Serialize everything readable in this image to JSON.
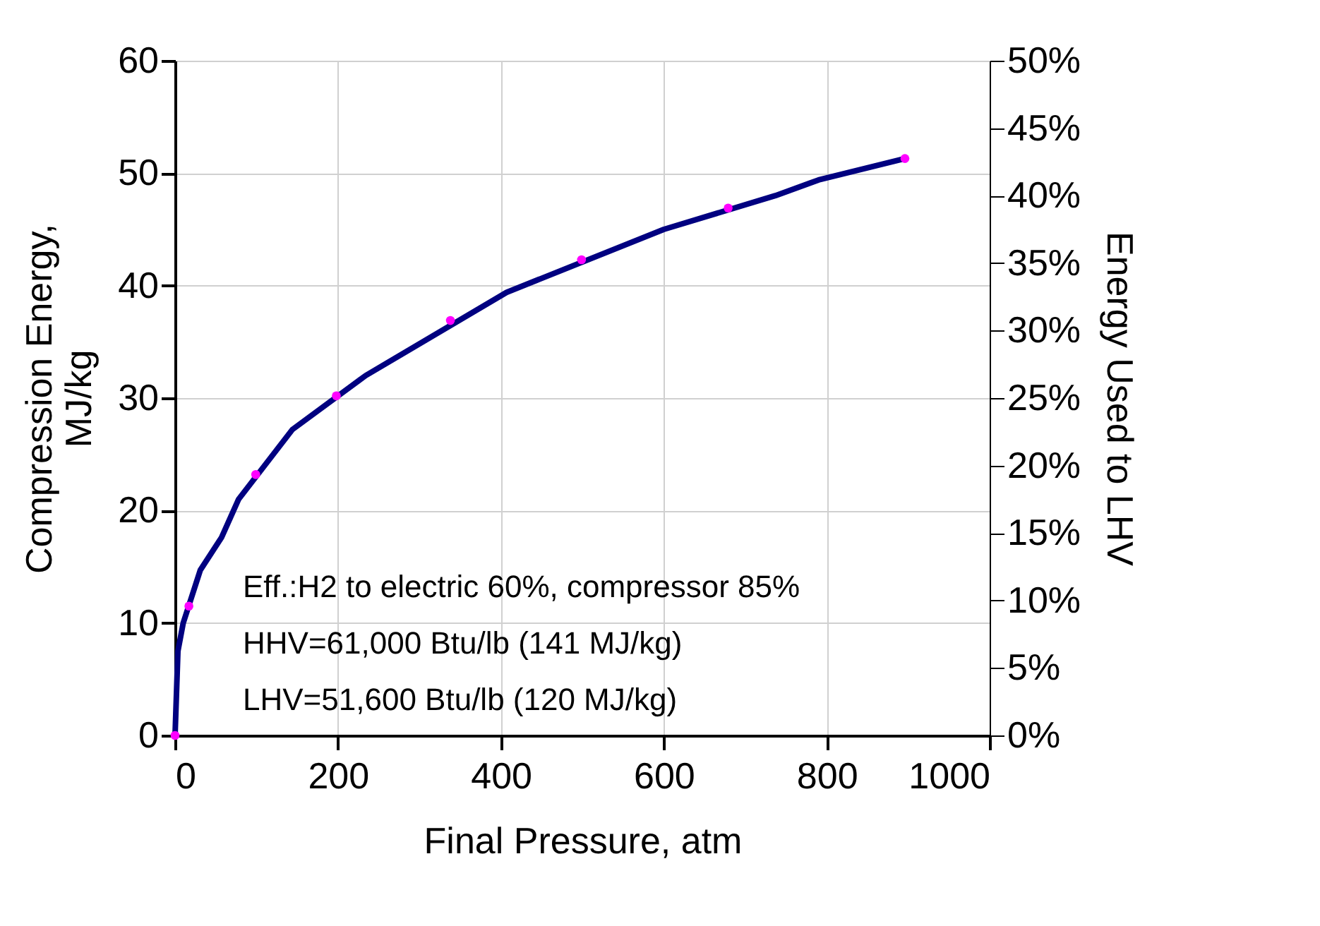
{
  "chart_data": {
    "type": "line",
    "xlabel": "Final Pressure, atm",
    "ylabel": "Compression Energy,\nMJ/kg",
    "y2label": "Energy Used to LHV",
    "xlim": [
      0,
      1000
    ],
    "xticks": [
      0,
      200,
      400,
      600,
      800,
      1000
    ],
    "ylim": [
      0,
      60
    ],
    "yticks": [
      0,
      10,
      20,
      30,
      40,
      50,
      60
    ],
    "y2lim": [
      0,
      50
    ],
    "y2ticks": [
      {
        "value": 0,
        "label": "0%"
      },
      {
        "value": 5,
        "label": "5%"
      },
      {
        "value": 10,
        "label": "10%"
      },
      {
        "value": 15,
        "label": "15%"
      },
      {
        "value": 20,
        "label": "20%"
      },
      {
        "value": 25,
        "label": "25%"
      },
      {
        "value": 30,
        "label": "30%"
      },
      {
        "value": 35,
        "label": "35%"
      },
      {
        "value": 40,
        "label": "40%"
      },
      {
        "value": 45,
        "label": "45%"
      },
      {
        "value": 50,
        "label": "50%"
      }
    ],
    "grid": true,
    "series": [
      {
        "color": "#000080",
        "marker": "none",
        "x": [
          0,
          3.5,
          10,
          31,
          57,
          78,
          144,
          234,
          407,
          600,
          737,
          790,
          896
        ],
        "values": [
          0,
          7.5,
          10,
          14.7,
          17.6,
          21,
          27.2,
          32,
          39.4,
          45,
          48,
          49.4,
          51.3
        ]
      },
      {
        "type": "scatter",
        "color": "#ff00ff",
        "marker": "circle",
        "x": [
          0,
          17,
          99,
          198,
          338,
          499,
          679,
          896
        ],
        "values": [
          0,
          11.5,
          23.2,
          30.2,
          36.9,
          42.3,
          46.9,
          51.3
        ]
      }
    ],
    "annotations": [
      "Eff.:H2 to electric 60%, compressor 85%",
      "HHV=61,000 Btu/lb (141 MJ/kg)",
      "LHV=51,600 Btu/lb (120 MJ/kg)"
    ]
  }
}
